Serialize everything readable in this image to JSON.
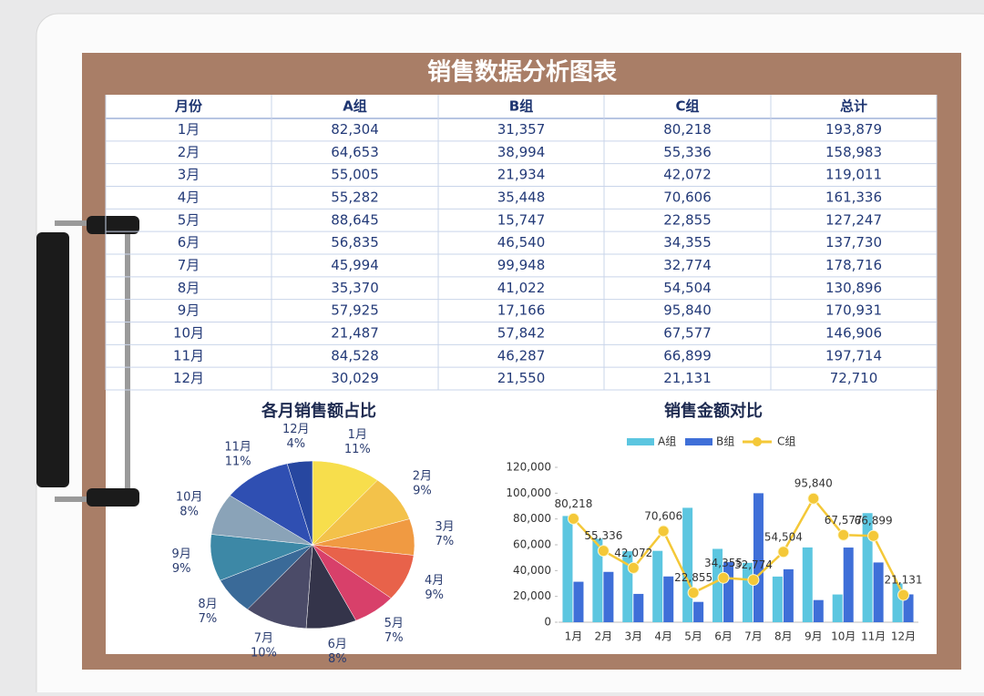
{
  "title": "销售数据分析图表",
  "table": {
    "header": [
      "月份",
      "A组",
      "B组",
      "C组",
      "总计"
    ],
    "rows": [
      [
        "1月",
        "82,304",
        "31,357",
        "80,218",
        "193,879"
      ],
      [
        "2月",
        "64,653",
        "38,994",
        "55,336",
        "158,983"
      ],
      [
        "3月",
        "55,005",
        "21,934",
        "42,072",
        "119,011"
      ],
      [
        "4月",
        "55,282",
        "35,448",
        "70,606",
        "161,336"
      ],
      [
        "5月",
        "88,645",
        "15,747",
        "22,855",
        "127,247"
      ],
      [
        "6月",
        "56,835",
        "46,540",
        "34,355",
        "137,730"
      ],
      [
        "7月",
        "45,994",
        "99,948",
        "32,774",
        "178,716"
      ],
      [
        "8月",
        "35,370",
        "41,022",
        "54,504",
        "130,896"
      ],
      [
        "9月",
        "57,925",
        "17,166",
        "95,840",
        "170,931"
      ],
      [
        "10月",
        "21,487",
        "57,842",
        "67,577",
        "146,906"
      ],
      [
        "11月",
        "84,528",
        "46,287",
        "66,899",
        "197,714"
      ],
      [
        "12月",
        "30,029",
        "21,550",
        "21,131",
        "72,710"
      ]
    ]
  },
  "chart_data": [
    {
      "type": "pie",
      "title": "各月销售额占比",
      "categories": [
        "1月",
        "2月",
        "3月",
        "4月",
        "5月",
        "6月",
        "7月",
        "8月",
        "9月",
        "10月",
        "11月",
        "12月"
      ],
      "values": [
        11,
        9,
        7,
        9,
        7,
        8,
        10,
        7,
        9,
        8,
        11,
        4
      ],
      "value_labels": [
        "11%",
        "9%",
        "7%",
        "9%",
        "7%",
        "8%",
        "10%",
        "7%",
        "9%",
        "8%",
        "11%",
        "4%"
      ],
      "colors": [
        "#f7de4c",
        "#f3c24a",
        "#f09a42",
        "#e8624a",
        "#d8406a",
        "#34344a",
        "#4b4b68",
        "#3a6a98",
        "#3d88a6",
        "#8aa3b8",
        "#2f4fb2",
        "#2747a0"
      ]
    },
    {
      "type": "bar",
      "title": "销售金额对比",
      "categories": [
        "1月",
        "2月",
        "3月",
        "4月",
        "5月",
        "6月",
        "7月",
        "8月",
        "9月",
        "10月",
        "11月",
        "12月"
      ],
      "series": [
        {
          "name": "A组",
          "color": "#5cc6e0",
          "values": [
            82304,
            64653,
            55005,
            55282,
            88645,
            56835,
            45994,
            35370,
            57925,
            21487,
            84528,
            30029
          ]
        },
        {
          "name": "B组",
          "color": "#3f6fd8",
          "values": [
            31357,
            38994,
            21934,
            35448,
            15747,
            46540,
            99948,
            41022,
            17166,
            57842,
            46287,
            21550
          ]
        },
        {
          "name": "C组",
          "color": "#f4c838",
          "type": "line",
          "values": [
            80218,
            55336,
            42072,
            70606,
            22855,
            34355,
            32774,
            54504,
            95840,
            67577,
            66899,
            21131
          ],
          "value_labels": [
            "80,218",
            "55,336",
            "42,072",
            "70,606",
            "22,855",
            "34,355",
            "32,774",
            "54,504",
            "95,840",
            "67,577",
            "66,899",
            "21,131"
          ]
        }
      ],
      "ylim": [
        0,
        120000
      ],
      "yticks": [
        0,
        {
          "value": 20000,
          "label": "20,000"
        },
        {
          "value": 40000,
          "label": "40,000"
        },
        {
          "value": 60000,
          "label": "60,000"
        },
        {
          "value": 80000,
          "label": "80,000"
        },
        {
          "value": 100000,
          "label": "100,000"
        },
        {
          "value": 120000,
          "label": "120,000"
        }
      ]
    }
  ]
}
